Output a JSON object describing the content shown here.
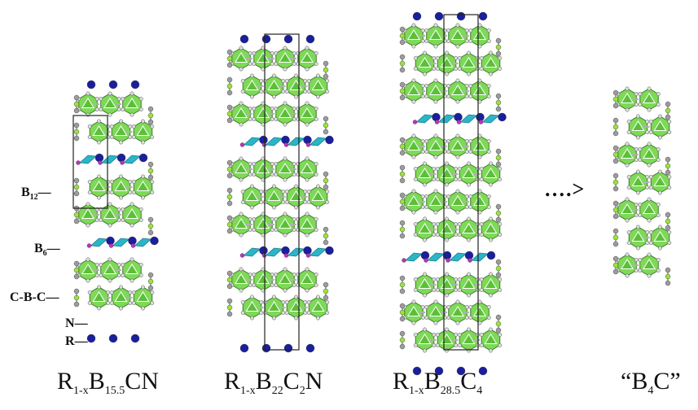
{
  "labels": {
    "b12": {
      "main": "B",
      "sub": "12"
    },
    "b6": {
      "main": "B",
      "sub": "6"
    },
    "cbc": "C-B-C",
    "n": "N",
    "r": "R"
  },
  "arrow_text": "….>",
  "structures": [
    {
      "caption_parts": [
        "R",
        "1-x",
        "B",
        "15.5",
        "CN",
        "",
        ""
      ]
    },
    {
      "caption_parts": [
        "R",
        "1-x",
        "B",
        "22",
        "C",
        "2",
        "N"
      ]
    },
    {
      "caption_parts": [
        "R",
        "1-x",
        "B",
        "28.5",
        "C",
        "4",
        ""
      ]
    },
    {
      "caption_parts": [
        "“B",
        "4",
        "C”",
        "",
        "",
        "",
        ""
      ]
    }
  ],
  "colors": {
    "icosahedron": "#7ed957",
    "icosahedron_edge": "#3a7a28",
    "octahedron": "#2bb5c8",
    "r_atom": "#1a1f9e",
    "n_atom": "#c22fc2",
    "c_atom": "#9c9c9c",
    "b_atom": "#9be23a",
    "bond": "#b0b0b0"
  }
}
